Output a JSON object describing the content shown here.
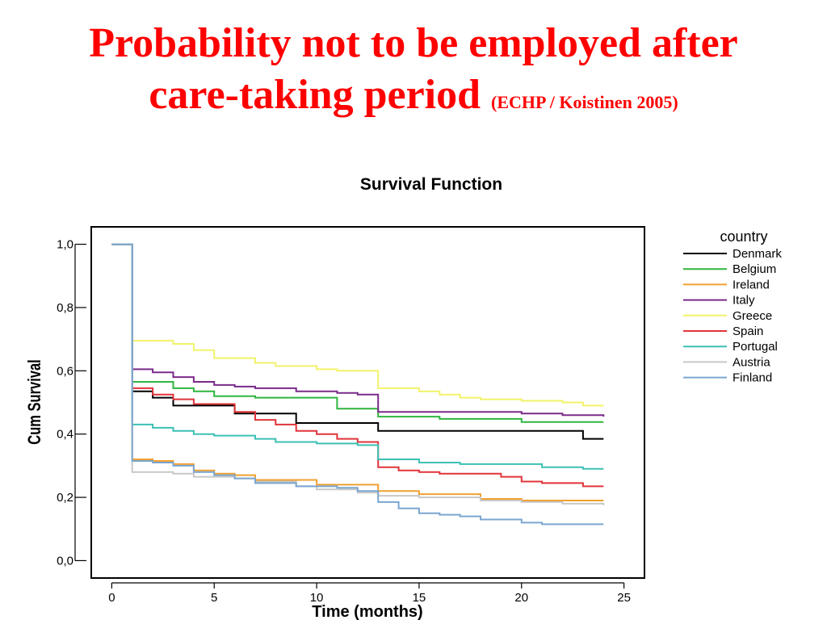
{
  "slide": {
    "title_line1": "Probability not to be employed after",
    "title_line2": "care-taking period",
    "title_source": "(ECHP / Koistinen 2005)"
  },
  "chart_data": {
    "type": "line",
    "step": true,
    "title": "Survival Function",
    "xlabel": "Time (months)",
    "ylabel": "Cum Survival",
    "xlim": [
      -1,
      26
    ],
    "ylim": [
      -0.055,
      1.055
    ],
    "xticks": [
      0,
      5,
      10,
      15,
      20,
      25
    ],
    "yticks": [
      0.0,
      0.2,
      0.4,
      0.6,
      0.8,
      1.0
    ],
    "ytick_labels": [
      "0,0",
      "0,2",
      "0,4",
      "0,6",
      "0,8",
      "1,0"
    ],
    "legend_title": "country",
    "legend_position": "right",
    "series": [
      {
        "name": "Denmark",
        "color": "#000000",
        "points": [
          [
            0,
            1.0
          ],
          [
            1,
            0.535
          ],
          [
            2,
            0.515
          ],
          [
            3,
            0.49
          ],
          [
            6,
            0.465
          ],
          [
            9,
            0.435
          ],
          [
            13,
            0.41
          ],
          [
            23,
            0.385
          ],
          [
            24,
            0.385
          ]
        ]
      },
      {
        "name": "Belgium",
        "color": "#2fb53f",
        "points": [
          [
            0,
            1.0
          ],
          [
            1,
            0.565
          ],
          [
            3,
            0.545
          ],
          [
            4,
            0.535
          ],
          [
            5,
            0.52
          ],
          [
            7,
            0.515
          ],
          [
            11,
            0.48
          ],
          [
            13,
            0.455
          ],
          [
            16,
            0.448
          ],
          [
            20,
            0.438
          ],
          [
            24,
            0.438
          ]
        ]
      },
      {
        "name": "Ireland",
        "color": "#f0a030",
        "points": [
          [
            0,
            1.0
          ],
          [
            1,
            0.32
          ],
          [
            2,
            0.315
          ],
          [
            3,
            0.305
          ],
          [
            4,
            0.285
          ],
          [
            5,
            0.275
          ],
          [
            6,
            0.27
          ],
          [
            7,
            0.255
          ],
          [
            10,
            0.24
          ],
          [
            13,
            0.22
          ],
          [
            15,
            0.21
          ],
          [
            18,
            0.195
          ],
          [
            20,
            0.19
          ],
          [
            24,
            0.19
          ]
        ]
      },
      {
        "name": "Italy",
        "color": "#7a2a8a",
        "points": [
          [
            0,
            1.0
          ],
          [
            1,
            0.605
          ],
          [
            2,
            0.595
          ],
          [
            3,
            0.58
          ],
          [
            4,
            0.565
          ],
          [
            5,
            0.555
          ],
          [
            6,
            0.55
          ],
          [
            7,
            0.545
          ],
          [
            9,
            0.535
          ],
          [
            11,
            0.53
          ],
          [
            12,
            0.525
          ],
          [
            13,
            0.47
          ],
          [
            20,
            0.465
          ],
          [
            22,
            0.46
          ],
          [
            24,
            0.455
          ]
        ]
      },
      {
        "name": "Greece",
        "color": "#f2f26a",
        "points": [
          [
            0,
            1.0
          ],
          [
            1,
            0.695
          ],
          [
            3,
            0.685
          ],
          [
            4,
            0.665
          ],
          [
            5,
            0.64
          ],
          [
            7,
            0.625
          ],
          [
            8,
            0.615
          ],
          [
            10,
            0.605
          ],
          [
            11,
            0.6
          ],
          [
            13,
            0.545
          ],
          [
            15,
            0.535
          ],
          [
            16,
            0.525
          ],
          [
            17,
            0.515
          ],
          [
            18,
            0.51
          ],
          [
            20,
            0.505
          ],
          [
            22,
            0.5
          ],
          [
            23,
            0.49
          ],
          [
            24,
            0.49
          ]
        ]
      },
      {
        "name": "Spain",
        "color": "#e0343a",
        "points": [
          [
            0,
            1.0
          ],
          [
            1,
            0.545
          ],
          [
            2,
            0.525
          ],
          [
            3,
            0.51
          ],
          [
            4,
            0.495
          ],
          [
            6,
            0.47
          ],
          [
            7,
            0.445
          ],
          [
            8,
            0.43
          ],
          [
            9,
            0.41
          ],
          [
            10,
            0.4
          ],
          [
            11,
            0.385
          ],
          [
            12,
            0.375
          ],
          [
            13,
            0.295
          ],
          [
            14,
            0.285
          ],
          [
            15,
            0.28
          ],
          [
            16,
            0.275
          ],
          [
            19,
            0.265
          ],
          [
            20,
            0.25
          ],
          [
            21,
            0.245
          ],
          [
            23,
            0.235
          ],
          [
            24,
            0.235
          ]
        ]
      },
      {
        "name": "Portugal",
        "color": "#3cc0b4",
        "points": [
          [
            0,
            1.0
          ],
          [
            1,
            0.43
          ],
          [
            2,
            0.42
          ],
          [
            3,
            0.41
          ],
          [
            4,
            0.4
          ],
          [
            5,
            0.395
          ],
          [
            7,
            0.385
          ],
          [
            8,
            0.375
          ],
          [
            9,
            0.375
          ],
          [
            10,
            0.37
          ],
          [
            12,
            0.365
          ],
          [
            13,
            0.32
          ],
          [
            15,
            0.31
          ],
          [
            17,
            0.305
          ],
          [
            21,
            0.295
          ],
          [
            23,
            0.29
          ],
          [
            24,
            0.29
          ]
        ]
      },
      {
        "name": "Austria",
        "color": "#c8c8c8",
        "points": [
          [
            0,
            1.0
          ],
          [
            1,
            0.28
          ],
          [
            3,
            0.275
          ],
          [
            4,
            0.265
          ],
          [
            6,
            0.26
          ],
          [
            7,
            0.25
          ],
          [
            9,
            0.235
          ],
          [
            10,
            0.225
          ],
          [
            12,
            0.215
          ],
          [
            13,
            0.205
          ],
          [
            15,
            0.2
          ],
          [
            18,
            0.19
          ],
          [
            20,
            0.185
          ],
          [
            22,
            0.18
          ],
          [
            24,
            0.175
          ]
        ]
      },
      {
        "name": "Finland",
        "color": "#7aa6d0",
        "points": [
          [
            0,
            1.0
          ],
          [
            1,
            0.315
          ],
          [
            2,
            0.31
          ],
          [
            3,
            0.3
          ],
          [
            4,
            0.28
          ],
          [
            5,
            0.27
          ],
          [
            6,
            0.26
          ],
          [
            7,
            0.245
          ],
          [
            9,
            0.235
          ],
          [
            11,
            0.23
          ],
          [
            12,
            0.22
          ],
          [
            13,
            0.185
          ],
          [
            14,
            0.165
          ],
          [
            15,
            0.15
          ],
          [
            16,
            0.145
          ],
          [
            17,
            0.14
          ],
          [
            18,
            0.13
          ],
          [
            20,
            0.12
          ],
          [
            21,
            0.115
          ],
          [
            24,
            0.115
          ]
        ]
      }
    ]
  }
}
